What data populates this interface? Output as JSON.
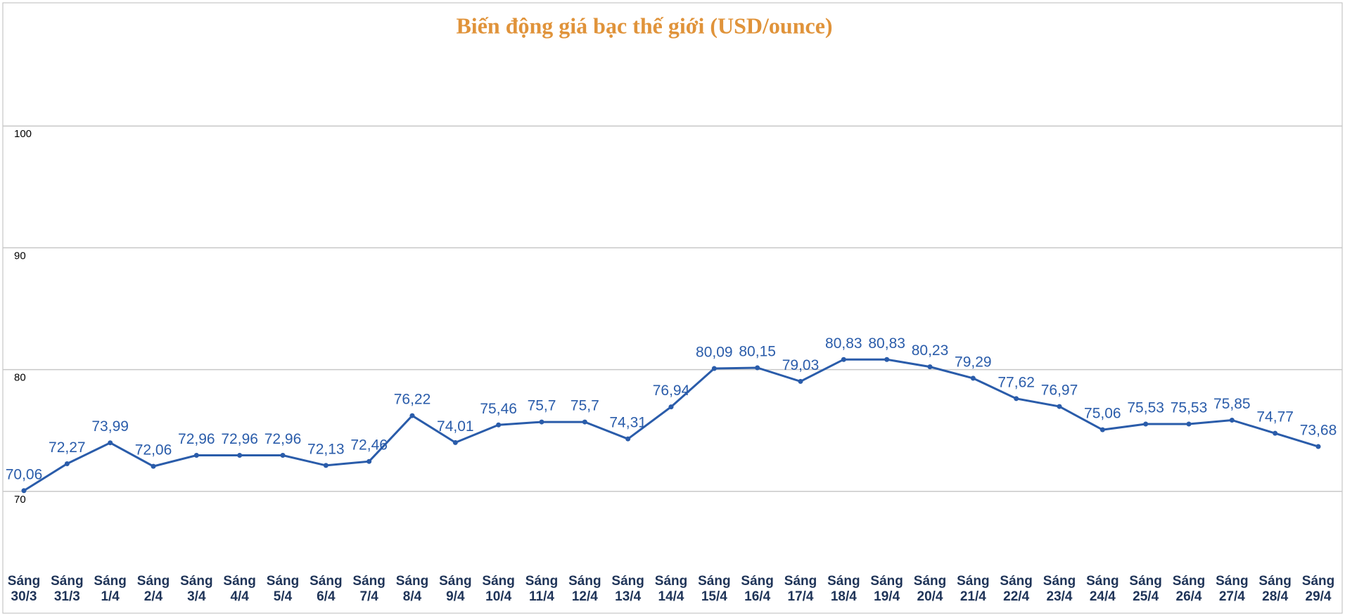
{
  "chart_data": {
    "type": "line",
    "title": "Biến động giá bạc thế giới (USD/ounce)",
    "categories": [
      "Sáng\n30/3",
      "Sáng\n31/3",
      "Sáng\n1/4",
      "Sáng\n2/4",
      "Sáng\n3/4",
      "Sáng\n4/4",
      "Sáng\n5/4",
      "Sáng\n6/4",
      "Sáng\n7/4",
      "Sáng\n8/4",
      "Sáng\n9/4",
      "Sáng\n10/4",
      "Sáng\n11/4",
      "Sáng\n12/4",
      "Sáng\n13/4",
      "Sáng\n14/4",
      "Sáng\n15/4",
      "Sáng\n16/4",
      "Sáng\n17/4",
      "Sáng\n18/4",
      "Sáng\n19/4",
      "Sáng\n20/4",
      "Sáng\n21/4",
      "Sáng\n22/4",
      "Sáng\n23/4",
      "Sáng\n24/4",
      "Sáng\n25/4",
      "Sáng\n26/4",
      "Sáng\n27/4",
      "Sáng\n28/4",
      "Sáng\n29/4"
    ],
    "values": [
      70.06,
      72.27,
      73.99,
      72.06,
      72.96,
      72.96,
      72.96,
      72.13,
      72.46,
      76.22,
      74.01,
      75.46,
      75.7,
      75.7,
      74.31,
      76.94,
      80.09,
      80.15,
      79.03,
      80.83,
      80.83,
      80.23,
      79.29,
      77.62,
      76.97,
      75.06,
      75.53,
      75.53,
      75.85,
      74.77,
      73.68
    ],
    "value_labels": [
      "70,06",
      "72,27",
      "73,99",
      "72,06",
      "72,96",
      "72,96",
      "72,96",
      "72,13",
      "72,46",
      "76,22",
      "74,01",
      "75,46",
      "75,7",
      "75,7",
      "74,31",
      "76,94",
      "80,09",
      "80,15",
      "79,03",
      "80,83",
      "80,83",
      "80,23",
      "79,29",
      "77,62",
      "76,97",
      "75,06",
      "75,53",
      "75,53",
      "75,85",
      "74,77",
      "73,68"
    ],
    "color": "#2a5caa",
    "ylim": [
      60,
      110
    ],
    "yticks": [
      70,
      80,
      90,
      100
    ],
    "grid": true
  }
}
